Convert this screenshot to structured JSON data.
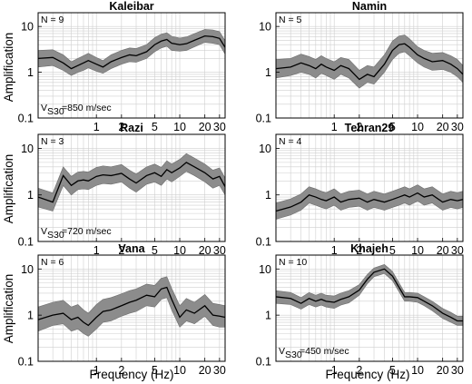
{
  "figure": {
    "xlabel": "Frequency (Hz)",
    "ylabel": "Amplification"
  },
  "chart_data": [
    {
      "type": "line",
      "title": "Kaleibar",
      "n_label": "N = 9",
      "vs30_label": "=850 m/sec",
      "xscale": "log",
      "yscale": "log",
      "xlim": [
        0.2,
        35
      ],
      "ylim": [
        0.1,
        20
      ],
      "xticks": [
        1,
        2,
        5,
        10,
        20,
        30
      ],
      "yticks": [
        0.1,
        1,
        10
      ],
      "grid": true,
      "x": [
        0.2,
        0.3,
        0.4,
        0.5,
        0.6,
        0.7,
        0.8,
        1.0,
        1.2,
        1.5,
        2.0,
        2.5,
        3.0,
        4.0,
        5.0,
        6.0,
        7.0,
        8.0,
        10.0,
        12.0,
        15.0,
        20.0,
        25.0,
        30.0,
        35.0
      ],
      "series": [
        {
          "name": "mean",
          "values": [
            2.0,
            2.1,
            1.6,
            1.2,
            1.4,
            1.6,
            1.8,
            1.5,
            1.3,
            1.7,
            2.1,
            2.4,
            2.3,
            2.8,
            4.0,
            4.8,
            5.2,
            4.3,
            4.0,
            4.2,
            5.0,
            6.2,
            6.0,
            5.5,
            3.5
          ]
        },
        {
          "name": "lower",
          "values": [
            1.3,
            1.4,
            1.1,
            0.85,
            1.0,
            1.1,
            1.25,
            1.05,
            0.95,
            1.2,
            1.5,
            1.7,
            1.65,
            2.0,
            2.8,
            3.4,
            3.7,
            3.0,
            2.9,
            3.0,
            3.6,
            4.5,
            4.3,
            4.0,
            2.5
          ]
        },
        {
          "name": "upper",
          "values": [
            3.0,
            3.1,
            2.4,
            1.7,
            2.0,
            2.3,
            2.6,
            2.1,
            1.8,
            2.4,
            3.0,
            3.4,
            3.3,
            4.0,
            5.7,
            6.8,
            7.3,
            6.1,
            5.6,
            5.9,
            7.0,
            8.6,
            8.4,
            7.7,
            4.9
          ]
        }
      ]
    },
    {
      "type": "line",
      "title": "Namin",
      "n_label": "N = 5",
      "vs30_label": "",
      "xscale": "log",
      "yscale": "log",
      "xlim": [
        0.2,
        35
      ],
      "ylim": [
        0.1,
        20
      ],
      "xticks": [
        1,
        2,
        5,
        10,
        20,
        30
      ],
      "yticks": [
        0.1,
        1,
        10
      ],
      "grid": true,
      "x": [
        0.2,
        0.3,
        0.4,
        0.5,
        0.6,
        0.7,
        0.8,
        1.0,
        1.2,
        1.5,
        2.0,
        2.5,
        3.0,
        4.0,
        5.0,
        6.0,
        7.0,
        8.0,
        10.0,
        12.0,
        15.0,
        20.0,
        25.0,
        30.0,
        35.0
      ],
      "series": [
        {
          "name": "mean",
          "values": [
            1.2,
            1.3,
            1.6,
            1.4,
            1.2,
            1.5,
            1.3,
            1.1,
            1.4,
            1.2,
            0.7,
            0.9,
            0.8,
            1.5,
            3.0,
            4.0,
            4.2,
            3.5,
            2.4,
            2.0,
            1.7,
            1.8,
            1.5,
            1.2,
            0.9
          ]
        },
        {
          "name": "lower",
          "values": [
            0.75,
            0.85,
            1.0,
            0.9,
            0.75,
            0.95,
            0.85,
            0.7,
            0.9,
            0.75,
            0.45,
            0.6,
            0.55,
            1.0,
            1.9,
            2.6,
            2.8,
            2.3,
            1.6,
            1.3,
            1.1,
            1.15,
            1.0,
            0.8,
            0.6
          ]
        },
        {
          "name": "upper",
          "values": [
            1.9,
            2.0,
            2.5,
            2.2,
            1.9,
            2.3,
            2.0,
            1.7,
            2.1,
            1.9,
            1.1,
            1.4,
            1.3,
            2.4,
            4.8,
            6.2,
            6.5,
            5.4,
            3.6,
            3.0,
            2.6,
            2.7,
            2.3,
            1.9,
            1.4
          ]
        }
      ]
    },
    {
      "type": "line",
      "title": "Razi",
      "n_label": "N = 3",
      "vs30_label": "=720 m/sec",
      "xscale": "log",
      "yscale": "log",
      "xlim": [
        0.2,
        35
      ],
      "ylim": [
        0.1,
        20
      ],
      "xticks": [
        1,
        2,
        5,
        10,
        20,
        30
      ],
      "yticks": [
        0.1,
        1,
        10
      ],
      "grid": true,
      "x": [
        0.2,
        0.3,
        0.4,
        0.5,
        0.6,
        0.7,
        0.8,
        1.0,
        1.2,
        1.5,
        2.0,
        2.5,
        3.0,
        4.0,
        5.0,
        6.0,
        7.0,
        8.0,
        10.0,
        12.0,
        15.0,
        20.0,
        25.0,
        30.0,
        35.0
      ],
      "series": [
        {
          "name": "mean",
          "values": [
            0.9,
            0.7,
            2.6,
            1.6,
            2.0,
            2.1,
            2.0,
            2.5,
            2.7,
            2.6,
            2.9,
            2.2,
            1.8,
            2.6,
            3.0,
            2.5,
            3.5,
            3.0,
            3.8,
            5.0,
            4.0,
            3.0,
            2.2,
            2.5,
            1.5
          ]
        },
        {
          "name": "lower",
          "values": [
            0.55,
            0.45,
            1.6,
            1.0,
            1.3,
            1.35,
            1.3,
            1.6,
            1.75,
            1.7,
            1.9,
            1.4,
            1.15,
            1.7,
            1.9,
            1.6,
            2.2,
            1.9,
            2.5,
            3.2,
            2.6,
            1.9,
            1.4,
            1.6,
            1.0
          ]
        },
        {
          "name": "upper",
          "values": [
            1.4,
            1.1,
            4.0,
            2.5,
            3.1,
            3.2,
            3.1,
            3.9,
            4.2,
            4.0,
            4.5,
            3.4,
            2.8,
            4.0,
            4.6,
            3.9,
            5.4,
            4.6,
            5.8,
            7.7,
            6.2,
            4.6,
            3.4,
            3.8,
            2.3
          ]
        }
      ]
    },
    {
      "type": "line",
      "title": "Tehran29",
      "n_label": "N = 4",
      "vs30_label": "",
      "xscale": "log",
      "yscale": "log",
      "xlim": [
        0.2,
        35
      ],
      "ylim": [
        0.1,
        20
      ],
      "xticks": [
        1,
        2,
        5,
        10,
        20,
        30
      ],
      "yticks": [
        0.1,
        1,
        10
      ],
      "grid": true,
      "x": [
        0.2,
        0.3,
        0.4,
        0.5,
        0.6,
        0.7,
        0.8,
        1.0,
        1.2,
        1.5,
        2.0,
        2.5,
        3.0,
        4.0,
        5.0,
        6.0,
        7.0,
        8.0,
        10.0,
        12.0,
        15.0,
        20.0,
        25.0,
        30.0,
        35.0
      ],
      "series": [
        {
          "name": "mean",
          "values": [
            0.45,
            0.55,
            0.7,
            1.0,
            0.9,
            0.8,
            0.75,
            0.9,
            0.7,
            0.8,
            0.85,
            0.7,
            0.8,
            0.7,
            0.8,
            0.9,
            1.0,
            0.9,
            1.1,
            0.9,
            1.0,
            0.7,
            0.8,
            0.75,
            0.8
          ]
        },
        {
          "name": "lower",
          "values": [
            0.3,
            0.37,
            0.47,
            0.67,
            0.6,
            0.54,
            0.5,
            0.6,
            0.47,
            0.54,
            0.57,
            0.47,
            0.54,
            0.47,
            0.54,
            0.6,
            0.67,
            0.6,
            0.74,
            0.6,
            0.67,
            0.47,
            0.54,
            0.5,
            0.54
          ]
        },
        {
          "name": "upper",
          "values": [
            0.67,
            0.82,
            1.05,
            1.5,
            1.35,
            1.2,
            1.12,
            1.35,
            1.05,
            1.2,
            1.27,
            1.05,
            1.2,
            1.05,
            1.2,
            1.35,
            1.5,
            1.35,
            1.65,
            1.35,
            1.5,
            1.05,
            1.2,
            1.12,
            1.2
          ]
        }
      ]
    },
    {
      "type": "line",
      "title": "Vana",
      "n_label": "N = 6",
      "vs30_label": "",
      "xscale": "log",
      "yscale": "log",
      "xlim": [
        0.2,
        35
      ],
      "ylim": [
        0.1,
        20
      ],
      "xticks": [
        1,
        2,
        5,
        10,
        20,
        30
      ],
      "yticks": [
        0.1,
        1,
        10
      ],
      "grid": true,
      "x": [
        0.2,
        0.3,
        0.4,
        0.5,
        0.6,
        0.7,
        0.8,
        1.0,
        1.2,
        1.5,
        2.0,
        2.5,
        3.0,
        4.0,
        5.0,
        6.0,
        7.0,
        8.0,
        10.0,
        12.0,
        15.0,
        20.0,
        25.0,
        30.0,
        35.0
      ],
      "series": [
        {
          "name": "mean",
          "values": [
            0.8,
            1.0,
            1.1,
            0.8,
            0.9,
            0.7,
            0.6,
            0.9,
            1.2,
            1.3,
            1.6,
            1.9,
            2.1,
            2.7,
            2.5,
            3.7,
            4.0,
            2.2,
            0.9,
            1.3,
            1.1,
            1.6,
            1.0,
            0.95,
            0.9
          ]
        },
        {
          "name": "lower",
          "values": [
            0.45,
            0.6,
            0.65,
            0.45,
            0.5,
            0.4,
            0.35,
            0.5,
            0.7,
            0.75,
            0.95,
            1.1,
            1.2,
            1.6,
            1.5,
            2.2,
            2.4,
            1.3,
            0.55,
            0.75,
            0.65,
            0.95,
            0.6,
            0.55,
            0.55
          ]
        },
        {
          "name": "upper",
          "values": [
            1.5,
            1.9,
            2.1,
            1.5,
            1.7,
            1.3,
            1.1,
            1.7,
            2.2,
            2.4,
            2.9,
            3.4,
            3.7,
            4.7,
            4.4,
            6.3,
            6.8,
            3.8,
            1.6,
            2.3,
            1.9,
            2.8,
            1.8,
            1.7,
            1.6
          ]
        }
      ]
    },
    {
      "type": "line",
      "title": "Khajeh",
      "n_label": "N = 10",
      "vs30_label": "=450 m/sec",
      "xscale": "log",
      "yscale": "log",
      "xlim": [
        0.2,
        35
      ],
      "ylim": [
        0.1,
        20
      ],
      "xticks": [
        1,
        2,
        5,
        10,
        20,
        30
      ],
      "yticks": [
        0.1,
        1,
        10
      ],
      "grid": true,
      "x": [
        0.2,
        0.3,
        0.4,
        0.5,
        0.6,
        0.7,
        0.8,
        1.0,
        1.2,
        1.5,
        2.0,
        2.5,
        3.0,
        4.0,
        5.0,
        6.0,
        7.0,
        8.0,
        10.0,
        12.0,
        15.0,
        20.0,
        25.0,
        30.0,
        35.0
      ],
      "series": [
        {
          "name": "mean",
          "values": [
            2.5,
            2.3,
            1.8,
            2.3,
            2.0,
            2.2,
            2.0,
            1.9,
            2.2,
            2.5,
            3.5,
            6.0,
            8.5,
            10.0,
            7.0,
            4.0,
            2.5,
            2.5,
            2.4,
            2.0,
            1.6,
            1.1,
            0.9,
            0.75,
            0.75
          ]
        },
        {
          "name": "lower",
          "values": [
            1.8,
            1.7,
            1.35,
            1.7,
            1.5,
            1.65,
            1.5,
            1.4,
            1.65,
            1.85,
            2.7,
            4.8,
            6.8,
            8.0,
            5.6,
            3.2,
            2.0,
            2.0,
            1.9,
            1.6,
            1.25,
            0.85,
            0.7,
            0.6,
            0.6
          ]
        },
        {
          "name": "upper",
          "values": [
            3.4,
            3.1,
            2.4,
            3.1,
            2.7,
            3.0,
            2.7,
            2.6,
            3.0,
            3.4,
            4.6,
            7.6,
            10.5,
            12.5,
            8.8,
            5.0,
            3.1,
            3.1,
            3.0,
            2.5,
            2.0,
            1.4,
            1.15,
            0.95,
            0.95
          ]
        }
      ]
    }
  ]
}
